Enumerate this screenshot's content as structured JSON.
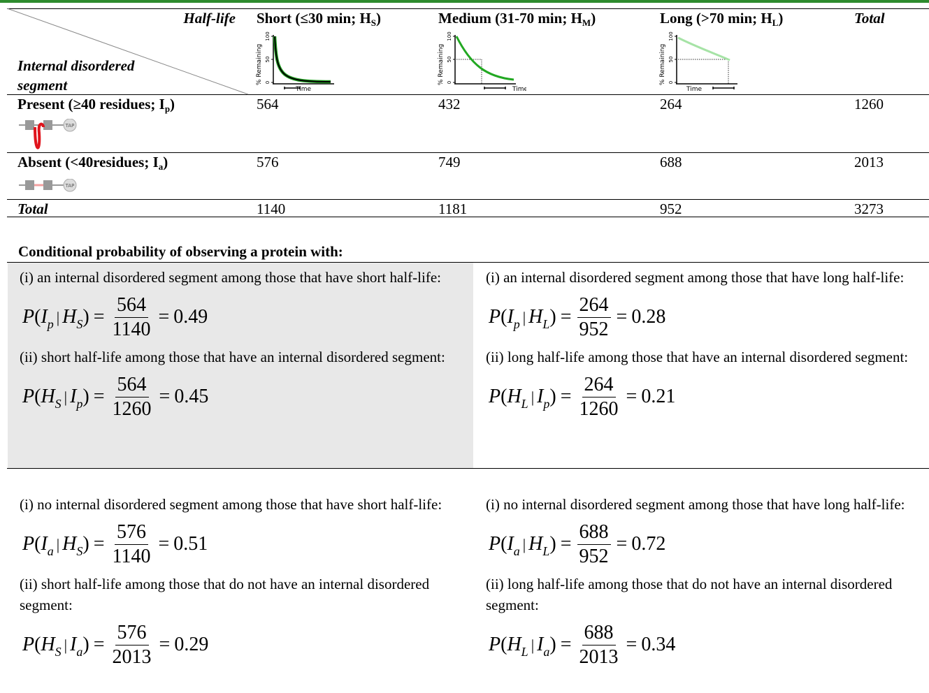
{
  "header": {
    "corner": {
      "column_label": "Half-life",
      "row_label": "Internal disordered segment"
    },
    "columns": [
      {
        "label": "Short (≤30 min; H",
        "sub": "S",
        "close": ")",
        "chart": {
          "y_label": "% Remaining",
          "y_ticks": [
            100,
            50,
            0
          ],
          "x_label": "Time",
          "curve_color": "#1f9e1f"
        }
      },
      {
        "label": "Medium (31-70 min; H",
        "sub": "M",
        "close": ")",
        "chart": {
          "y_label": "% Remaining",
          "y_ticks": [
            100,
            50,
            0
          ],
          "x_label": "Time",
          "curve_color": "#22a822"
        }
      },
      {
        "label": "Long (>70 min; H",
        "sub": "L",
        "close": ")",
        "chart": {
          "y_label": "% Remaining",
          "y_ticks": [
            100,
            50,
            0
          ],
          "x_label": "Time",
          "curve_color": "#a6e3a6"
        }
      },
      {
        "label": "Total"
      }
    ]
  },
  "rows": [
    {
      "label": "Present (≥40 residues; I",
      "sub": "p",
      "close": ")",
      "icon_label": "TAP",
      "values": [
        564,
        432,
        264,
        1260
      ]
    },
    {
      "label": "Absent (<40residues; I",
      "sub": "a",
      "close": ")",
      "icon_label": "TAP",
      "values": [
        576,
        749,
        688,
        2013
      ]
    },
    {
      "label": "Total",
      "values": [
        1140,
        1181,
        952,
        3273
      ]
    }
  ],
  "section_title": "Conditional probability of observing a protein with:",
  "panels": [
    {
      "items": [
        {
          "text": "(i) an internal disordered segment among those that have short half-life:",
          "formula": {
            "fn": "P",
            "arg1": "I",
            "arg1_sub": "p",
            "arg2": "H",
            "arg2_sub": "S",
            "numerator": 564,
            "denominator": 1140,
            "result": 0.49
          }
        },
        {
          "text": "(ii) short half-life among those that have an internal disordered segment:",
          "formula": {
            "fn": "P",
            "arg1": "H",
            "arg1_sub": "S",
            "arg2": "I",
            "arg2_sub": "p",
            "numerator": 564,
            "denominator": 1260,
            "result": 0.45
          }
        }
      ]
    },
    {
      "items": [
        {
          "text": "(i) an internal disordered segment among those that have long half-life:",
          "formula": {
            "fn": "P",
            "arg1": "I",
            "arg1_sub": "p",
            "arg2": "H",
            "arg2_sub": "L",
            "numerator": 264,
            "denominator": 952,
            "result": 0.28
          }
        },
        {
          "text": "(ii) long half-life among those that have an internal disordered segment:",
          "formula": {
            "fn": "P",
            "arg1": "H",
            "arg1_sub": "L",
            "arg2": "I",
            "arg2_sub": "p",
            "numerator": 264,
            "denominator": 1260,
            "result": 0.21
          }
        }
      ]
    },
    {
      "items": [
        {
          "text": "(i) no internal disordered segment among those that have short half-life:",
          "formula": {
            "fn": "P",
            "arg1": "I",
            "arg1_sub": "a",
            "arg2": "H",
            "arg2_sub": "S",
            "numerator": 576,
            "denominator": 1140,
            "result": 0.51
          }
        },
        {
          "text": "(ii) short half-life among those that do not have an internal disordered segment:",
          "formula": {
            "fn": "P",
            "arg1": "H",
            "arg1_sub": "S",
            "arg2": "I",
            "arg2_sub": "a",
            "numerator": 576,
            "denominator": 2013,
            "result": 0.29
          }
        }
      ]
    },
    {
      "items": [
        {
          "text": "(i) no internal disordered segment among those that have long half-life:",
          "formula": {
            "fn": "P",
            "arg1": "I",
            "arg1_sub": "a",
            "arg2": "H",
            "arg2_sub": "L",
            "numerator": 688,
            "denominator": 952,
            "result": 0.72
          }
        },
        {
          "text": "(ii) long half-life among those that do not have an internal disordered segment:",
          "formula": {
            "fn": "P",
            "arg1": "H",
            "arg1_sub": "L",
            "arg2": "I",
            "arg2_sub": "a",
            "numerator": 688,
            "denominator": 2013,
            "result": 0.34
          }
        }
      ]
    }
  ]
}
